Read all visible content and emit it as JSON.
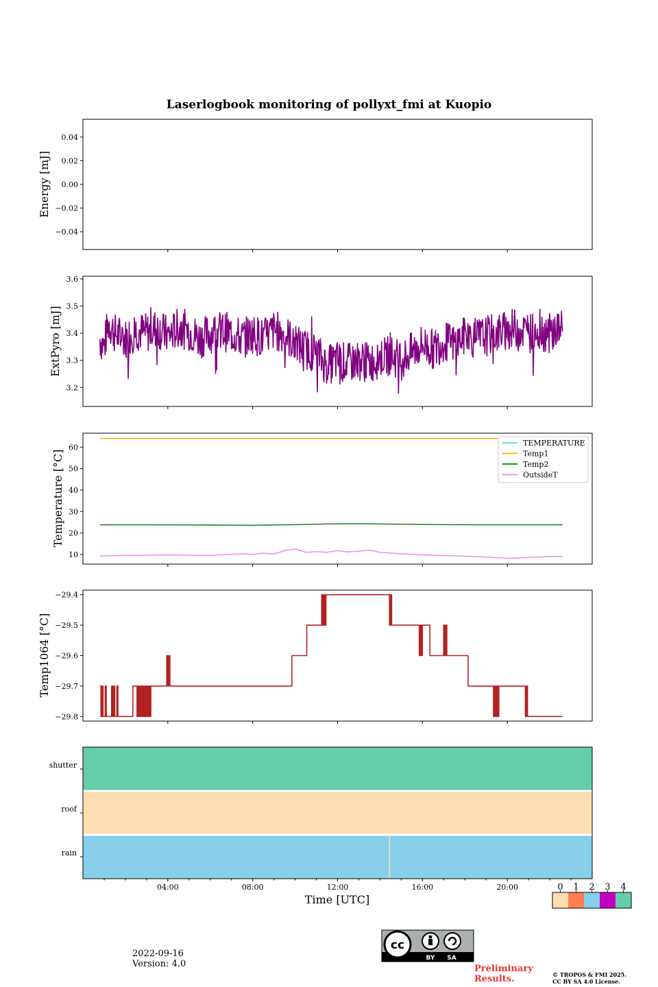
{
  "chart_data": [
    {
      "type": "line",
      "title": "Laserlogbook monitoring of pollyxt_fmi at Kuopio",
      "ylabel": "Energy [mJ]",
      "xlabel": "",
      "ylim": [
        -0.055,
        0.055
      ],
      "yticks": [
        0.04,
        0.02,
        0.0,
        -0.02,
        -0.04
      ],
      "ytick_labels": [
        "0.04",
        "0.02",
        "0.00",
        "−0.02",
        "−0.04"
      ],
      "series": []
    },
    {
      "type": "line",
      "ylabel": "ExtPyro [mJ]",
      "ylim": [
        3.13,
        3.61
      ],
      "yticks": [
        3.6,
        3.5,
        3.4,
        3.3,
        3.2
      ],
      "ytick_labels": [
        "3.6",
        "3.5",
        "3.4",
        "3.3",
        "3.2"
      ],
      "series": [
        {
          "name": "ExtPyro",
          "color": "#800080",
          "x": [
            0.8,
            1.0,
            1.2,
            1.5,
            2.0,
            2.5,
            3.0,
            3.5,
            4.0,
            4.5,
            5.0,
            5.5,
            6.0,
            6.5,
            7.0,
            7.5,
            8.0,
            8.5,
            9.0,
            9.5,
            10.0,
            10.5,
            11.0,
            11.5,
            12.0,
            12.5,
            13.0,
            13.5,
            14.0,
            14.5,
            15.0,
            15.5,
            16.0,
            16.5,
            17.0,
            17.5,
            18.0,
            18.5,
            19.0,
            19.5,
            20.0,
            20.5,
            21.0,
            21.5,
            22.0,
            22.5,
            22.6
          ],
          "y": [
            3.38,
            3.35,
            3.44,
            3.4,
            3.38,
            3.41,
            3.4,
            3.42,
            3.39,
            3.42,
            3.41,
            3.38,
            3.4,
            3.41,
            3.4,
            3.38,
            3.4,
            3.38,
            3.41,
            3.4,
            3.36,
            3.34,
            3.33,
            3.28,
            3.3,
            3.29,
            3.3,
            3.29,
            3.31,
            3.32,
            3.3,
            3.33,
            3.36,
            3.34,
            3.37,
            3.36,
            3.39,
            3.38,
            3.39,
            3.4,
            3.41,
            3.42,
            3.4,
            3.41,
            3.4,
            3.42,
            3.4
          ]
        }
      ]
    },
    {
      "type": "line",
      "ylabel": "Temperature [°C]",
      "ylim": [
        5.5,
        66.5
      ],
      "yticks": [
        60,
        50,
        40,
        30,
        20,
        10
      ],
      "ytick_labels": [
        "60",
        "50",
        "40",
        "30",
        "20",
        "10"
      ],
      "legend": [
        "TEMPERATURE",
        "Temp1",
        "Temp2",
        "OutsideT"
      ],
      "legend_placement": "top-right",
      "series": [
        {
          "name": "TEMPERATURE",
          "color": "#40e0d0",
          "x": [],
          "y": []
        },
        {
          "name": "Temp1",
          "color": "#ffa500",
          "x": [
            0.8,
            22.6
          ],
          "y": [
            64,
            64
          ]
        },
        {
          "name": "Temp2",
          "color": "#008000",
          "x": [
            0.8,
            3.0,
            6.0,
            8.0,
            10.0,
            11.5,
            13.0,
            15.0,
            17.0,
            19.0,
            21.0,
            22.6
          ],
          "y": [
            23.8,
            23.8,
            23.7,
            23.6,
            23.9,
            24.2,
            24.3,
            24.1,
            23.9,
            23.8,
            23.8,
            23.8
          ]
        },
        {
          "name": "OutsideT",
          "color": "#ee82ee",
          "x": [
            0.8,
            2.0,
            4.0,
            6.0,
            7.5,
            8.0,
            8.5,
            9.0,
            9.5,
            10.0,
            10.5,
            11.0,
            11.5,
            12.0,
            12.5,
            13.0,
            13.5,
            14.0,
            15.0,
            16.0,
            17.0,
            18.0,
            19.0,
            20.0,
            21.0,
            22.0,
            22.6
          ],
          "y": [
            9.2,
            9.6,
            9.7,
            9.6,
            10.3,
            10.0,
            10.6,
            10.2,
            11.8,
            12.5,
            11.0,
            11.3,
            11.0,
            11.8,
            11.2,
            11.5,
            12.0,
            11.0,
            10.3,
            9.8,
            9.5,
            9.2,
            8.8,
            8.2,
            8.6,
            9.0,
            9.1
          ]
        }
      ]
    },
    {
      "type": "line",
      "ylabel": "Temp1064 [°C]",
      "ylim": [
        -29.815,
        -29.385
      ],
      "yticks": [
        -29.4,
        -29.5,
        -29.6,
        -29.7,
        -29.8
      ],
      "ytick_labels": [
        "−29.4",
        "−29.5",
        "−29.6",
        "−29.7",
        "−29.8"
      ],
      "series": [
        {
          "name": "Temp1064",
          "color": "#b22222",
          "x": [
            0.8,
            0.85,
            0.9,
            0.95,
            1.0,
            1.05,
            1.1,
            1.15,
            1.3,
            1.35,
            1.4,
            1.45,
            1.5,
            1.55,
            1.6,
            1.65,
            1.7,
            1.75,
            2.3,
            2.35,
            2.5,
            2.55,
            2.6,
            2.65,
            2.7,
            2.75,
            2.8,
            2.85,
            2.9,
            2.95,
            3.0,
            3.05,
            3.1,
            3.15,
            3.2,
            3.9,
            3.95,
            4.0,
            4.05,
            4.1,
            9.8,
            9.85,
            10.5,
            10.55,
            11.2,
            11.25,
            11.3,
            11.35,
            11.4,
            11.45,
            11.5,
            11.55,
            14.4,
            14.45,
            14.5,
            14.55,
            15.8,
            15.85,
            15.9,
            15.95,
            16.0,
            16.05,
            16.3,
            16.35,
            17.0,
            17.05,
            17.1,
            17.15,
            17.2,
            17.25,
            18.1,
            18.15,
            19.3,
            19.35,
            19.4,
            19.45,
            19.5,
            19.55,
            19.6,
            19.65,
            20.8,
            20.85,
            20.9,
            20.95,
            21.1,
            21.15,
            22.6
          ],
          "y": [
            -29.7,
            -29.8,
            -29.7,
            -29.8,
            -29.8,
            -29.7,
            -29.8,
            -29.8,
            -29.8,
            -29.7,
            -29.8,
            -29.7,
            -29.8,
            -29.8,
            -29.7,
            -29.8,
            -29.8,
            -29.8,
            -29.8,
            -29.7,
            -29.7,
            -29.8,
            -29.7,
            -29.8,
            -29.7,
            -29.8,
            -29.7,
            -29.8,
            -29.7,
            -29.8,
            -29.7,
            -29.8,
            -29.7,
            -29.8,
            -29.7,
            -29.7,
            -29.6,
            -29.7,
            -29.6,
            -29.7,
            -29.7,
            -29.6,
            -29.6,
            -29.5,
            -29.5,
            -29.4,
            -29.5,
            -29.4,
            -29.5,
            -29.4,
            -29.4,
            -29.4,
            -29.4,
            -29.5,
            -29.4,
            -29.5,
            -29.5,
            -29.6,
            -29.5,
            -29.6,
            -29.5,
            -29.5,
            -29.5,
            -29.6,
            -29.5,
            -29.6,
            -29.5,
            -29.6,
            -29.6,
            -29.6,
            -29.6,
            -29.7,
            -29.7,
            -29.8,
            -29.7,
            -29.8,
            -29.7,
            -29.8,
            -29.7,
            -29.7,
            -29.7,
            -29.8,
            -29.7,
            -29.8,
            -29.8,
            -29.8,
            -29.8
          ]
        }
      ]
    },
    {
      "type": "heatmap",
      "rows": [
        "shutter",
        "roof",
        "rain"
      ],
      "row_values": [
        4,
        0,
        2
      ],
      "row_gaps": [
        {
          "row": "rain",
          "at_hour": 14.45
        }
      ],
      "xlabel": "Time [UTC]",
      "xlim": [
        0,
        24
      ],
      "xticks": [
        4,
        8,
        12,
        16,
        20
      ],
      "xtick_labels": [
        "04:00",
        "08:00",
        "12:00",
        "16:00",
        "20:00"
      ],
      "colorbar": {
        "ticks": [
          "0",
          "1",
          "2",
          "3",
          "4"
        ],
        "colors": [
          "#fddeb0",
          "#ff7f50",
          "#87ceeb",
          "#bf00bf",
          "#66cdaa"
        ]
      }
    }
  ],
  "footer": {
    "date": "2022-09-16",
    "version": "Version: 4.0",
    "preliminary": [
      "Preliminary",
      "Results."
    ],
    "copyright": [
      "© TROPOS & FMI 2025.",
      "CC BY SA 4.0 License."
    ],
    "license_badge": {
      "cc": "cc",
      "by": "BY",
      "sa": "SA"
    }
  }
}
